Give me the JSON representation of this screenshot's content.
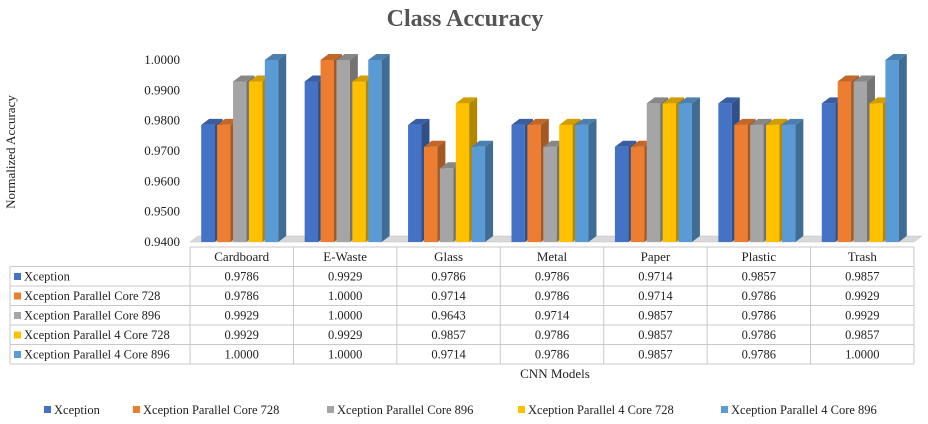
{
  "chart_data": {
    "type": "bar",
    "title": "Class Accuracy",
    "xlabel": "CNN Models",
    "ylabel": "Normalized Accuracy",
    "ylim": [
      0.94,
      1.0
    ],
    "yticks": [
      "0.9400",
      "0.9500",
      "0.9600",
      "0.9700",
      "0.9800",
      "0.9900",
      "1.0000"
    ],
    "categories": [
      "Cardboard",
      "E-Waste",
      "Glass",
      "Metal",
      "Paper",
      "Plastic",
      "Trash"
    ],
    "series": [
      {
        "name": "Xception",
        "color": "#4472c4",
        "values": [
          0.9786,
          0.9929,
          0.9786,
          0.9786,
          0.9714,
          0.9857,
          0.9857
        ],
        "labels": [
          "0.9786",
          "0.9929",
          "0.9786",
          "0.9786",
          "0.9714",
          "0.9857",
          "0.9857"
        ]
      },
      {
        "name": "Xception Parallel Core 728",
        "color": "#ed7d31",
        "values": [
          0.9786,
          1.0,
          0.9714,
          0.9786,
          0.9714,
          0.9786,
          0.9929
        ],
        "labels": [
          "0.9786",
          "1.0000",
          "0.9714",
          "0.9786",
          "0.9714",
          "0.9786",
          "0.9929"
        ]
      },
      {
        "name": "Xception Parallel Core 896",
        "color": "#a5a5a5",
        "values": [
          0.9929,
          1.0,
          0.9643,
          0.9714,
          0.9857,
          0.9786,
          0.9929
        ],
        "labels": [
          "0.9929",
          "1.0000",
          "0.9643",
          "0.9714",
          "0.9857",
          "0.9786",
          "0.9929"
        ]
      },
      {
        "name": "Xception Parallel 4 Core 728",
        "color": "#ffc000",
        "values": [
          0.9929,
          0.9929,
          0.9857,
          0.9786,
          0.9857,
          0.9786,
          0.9857
        ],
        "labels": [
          "0.9929",
          "0.9929",
          "0.9857",
          "0.9786",
          "0.9857",
          "0.9786",
          "0.9857"
        ]
      },
      {
        "name": "Xception Parallel 4 Core 896",
        "color": "#5b9bd5",
        "values": [
          1.0,
          1.0,
          0.9714,
          0.9786,
          0.9857,
          0.9786,
          1.0
        ],
        "labels": [
          "1.0000",
          "1.0000",
          "0.9714",
          "0.9786",
          "0.9857",
          "0.9786",
          "1.0000"
        ]
      }
    ],
    "legend_position": "bottom",
    "data_table": true,
    "style": "3d-clustered-column",
    "grid": false
  }
}
